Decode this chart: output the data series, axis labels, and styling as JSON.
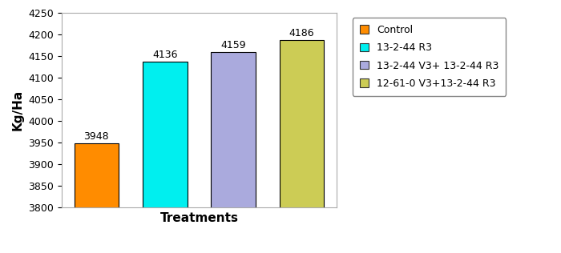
{
  "categories": [
    "Control",
    "13-2-44 R3",
    "13-2-44 V3+ 13-2-44 R3",
    "12-61-0 V3+13-2-44 R3"
  ],
  "values": [
    3948,
    4136,
    4159,
    4186
  ],
  "bar_colors": [
    "#FF8C00",
    "#00EFEF",
    "#AAAADD",
    "#CCCC55"
  ],
  "bar_edge_colors": [
    "#000000",
    "#000000",
    "#000000",
    "#000000"
  ],
  "labels": [
    "3948",
    "4136",
    "4159",
    "4186"
  ],
  "legend_labels": [
    "Control",
    "13-2-44 R3",
    "13-2-44 V3+ 13-2-44 R3",
    "12-61-0 V3+13-2-44 R3"
  ],
  "legend_colors": [
    "#FF8C00",
    "#00EFEF",
    "#AAAADD",
    "#CCCC55"
  ],
  "ylabel": "Kg/Ha",
  "xlabel": "Treatments",
  "ylim": [
    3800,
    4250
  ],
  "yticks": [
    3800,
    3850,
    3900,
    3950,
    4000,
    4050,
    4100,
    4150,
    4200,
    4250
  ],
  "bar_width": 0.65,
  "background_color": "#ffffff",
  "label_fontsize": 9,
  "axis_label_fontsize": 11
}
